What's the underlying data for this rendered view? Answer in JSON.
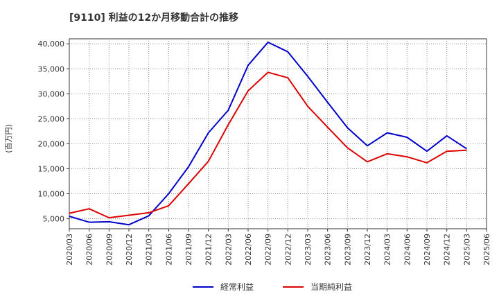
{
  "chart_data": {
    "type": "line",
    "title": "[9110]  利益の12か月移動合計の推移",
    "xlabel": "",
    "ylabel": "(百万円)",
    "ylim": [
      3000,
      41000
    ],
    "yticks": [
      5000,
      10000,
      15000,
      20000,
      25000,
      30000,
      35000,
      40000
    ],
    "ytick_labels": [
      "5,000",
      "10,000",
      "15,000",
      "20,000",
      "25,000",
      "30,000",
      "35,000",
      "40,000"
    ],
    "categories": [
      "2020/03",
      "2020/06",
      "2020/09",
      "2020/12",
      "2021/03",
      "2021/06",
      "2021/09",
      "2021/12",
      "2022/03",
      "2022/06",
      "2022/09",
      "2022/12",
      "2023/03",
      "2023/06",
      "2023/09",
      "2023/12",
      "2024/03",
      "2024/06",
      "2024/09",
      "2024/12",
      "2025/03",
      "2025/06"
    ],
    "grid": true,
    "legend_position": "bottom-center",
    "series": [
      {
        "name": "経常利益",
        "color": "#0000cc",
        "values": [
          5500,
          4300,
          4400,
          3800,
          5600,
          10000,
          15400,
          22200,
          26700,
          35700,
          40300,
          38400,
          33500,
          28300,
          23200,
          19600,
          22200,
          21300,
          18500,
          21600,
          19000,
          null
        ]
      },
      {
        "name": "当期純利益",
        "color": "#dd0000",
        "values": [
          6100,
          7000,
          5200,
          5700,
          6200,
          7600,
          12000,
          16500,
          23800,
          30600,
          34300,
          33200,
          27500,
          23300,
          19200,
          16400,
          18000,
          17400,
          16200,
          18500,
          18700,
          null
        ]
      }
    ]
  }
}
